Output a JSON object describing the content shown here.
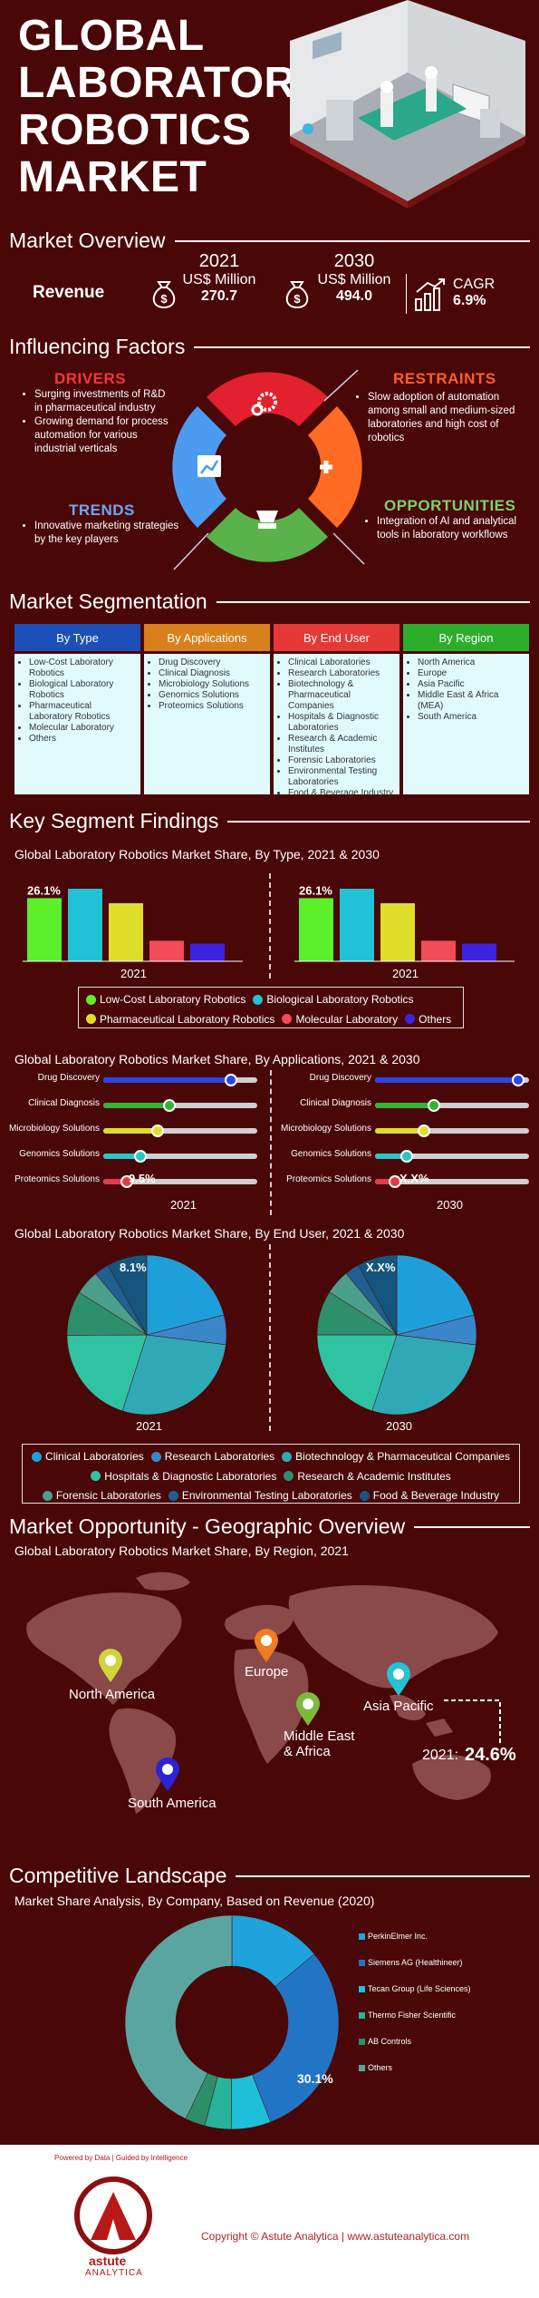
{
  "hero": {
    "line1": "GLOBAL",
    "line2": "LABORATORY",
    "line3": "ROBOTICS",
    "line4": "MARKET"
  },
  "overview": {
    "heading": "Market Overview",
    "revenue_label": "Revenue",
    "y2021": "2021",
    "unit2021": "US$ Million",
    "val2021": "270.7",
    "y2030": "2030",
    "unit2030": "US$ Million",
    "val2030": "494.0",
    "cagr_label": "CAGR",
    "cagr_val": "6.9%"
  },
  "factors": {
    "heading": "Influencing Factors",
    "drivers": {
      "title": "DRIVERS",
      "items": [
        "Surging investments of R&D in pharmaceutical industry",
        "Growing demand for process automation for various industrial verticals"
      ]
    },
    "restraints": {
      "title": "RESTRAINTS",
      "items": [
        "Slow adoption of automation among small and medium-sized laboratories and high cost of robotics"
      ]
    },
    "trends": {
      "title": "TRENDS",
      "items": [
        "Innovative marketing strategies by the key players"
      ]
    },
    "opportunities": {
      "title": "OPPORTUNITIES",
      "items": [
        "Integration of AI and analytical tools in laboratory workflows"
      ]
    }
  },
  "segmentation": {
    "heading": "Market Segmentation",
    "columns": [
      {
        "title": "By Type",
        "color": "#1c4fb8",
        "items": [
          "Low-Cost Laboratory Robotics",
          "Biological Laboratory Robotics",
          "Pharmaceutical Laboratory Robotics",
          "Molecular Laboratory",
          "Others"
        ]
      },
      {
        "title": "By Applications",
        "color": "#d8801b",
        "items": [
          "Drug Discovery",
          "Clinical Diagnosis",
          "Microbiology Solutions",
          "Genomics Solutions",
          "Proteomics Solutions"
        ]
      },
      {
        "title": "By End User",
        "color": "#e53935",
        "items": [
          "Clinical Laboratories",
          "Research Laboratories",
          "Biotechnology & Pharmaceutical Companies",
          "Hospitals & Diagnostic Laboratories",
          "Research & Academic Institutes",
          "Forensic Laboratories",
          "Environmental Testing Laboratories",
          "Food & Beverage Industry"
        ]
      },
      {
        "title": "By Region",
        "color": "#2cae2c",
        "items": [
          "North America",
          "Europe",
          "Asia Pacific",
          "Middle East & Africa (MEA)",
          "South America"
        ]
      }
    ]
  },
  "findings": {
    "heading": "Key Segment Findings",
    "type_title": "Global Laboratory Robotics Market Share, By Type, 2021 & 2030",
    "type_left_label": "26.1%",
    "type_right_label": "26.1%",
    "type_left_year": "2021",
    "type_right_year": "2021",
    "apps_title": "Global Laboratory Robotics Market Share, By Applications, 2021 & 2030",
    "apps_left_label": "9.5%",
    "apps_right_label": "X.X%",
    "apps_left_year": "2021",
    "apps_right_year": "2030",
    "enduser_title": "Global Laboratory Robotics Market Share, By End User, 2021 & 2030",
    "enduser_left_label": "8.1%",
    "enduser_right_label": "X.X%",
    "enduser_left_year": "2021",
    "enduser_right_year": "2030"
  },
  "chart_data": [
    {
      "type": "bar",
      "categories": [
        "Low-Cost Laboratory Robotics",
        "Biological Laboratory Robotics",
        "Pharmaceutical Laboratory Robotics",
        "Molecular Laboratory",
        "Others"
      ],
      "colors": [
        "#5bf02a",
        "#22c2d6",
        "#dede2a",
        "#f24b5a",
        "#3b23e0"
      ],
      "series": [
        {
          "name": "2021",
          "values": [
            26.1,
            30.0,
            24.0,
            8.5,
            7.3
          ]
        },
        {
          "name": "2021",
          "values": [
            26.1,
            30.0,
            24.0,
            8.5,
            7.3
          ]
        }
      ],
      "title": "Global Laboratory Robotics Market Share, By Type, 2021 & 2030"
    },
    {
      "type": "bar",
      "categories": [
        "Drug Discovery",
        "Clinical Diagnosis",
        "Microbiology Solutions",
        "Genomics Solutions",
        "Proteomics Solutions"
      ],
      "colors": [
        "#2a46e6",
        "#33b233",
        "#e2dd2a",
        "#29c7c4",
        "#e53a45"
      ],
      "series": [
        {
          "name": "2021",
          "values": [
            52,
            27,
            22,
            15,
            9.5
          ]
        },
        {
          "name": "2030",
          "values": [
            58,
            24,
            20,
            13,
            8
          ]
        }
      ],
      "title": "Global Laboratory Robotics Market Share, By Applications, 2021 & 2030"
    },
    {
      "type": "pie",
      "categories": [
        "Clinical Laboratories",
        "Research Laboratories",
        "Biotechnology & Pharmaceutical Companies",
        "Hospitals & Diagnostic Laboratories",
        "Research & Academic Institutes",
        "Forensic Laboratories",
        "Environmental Testing Laboratories",
        "Food & Beverage Industry"
      ],
      "colors": [
        "#1e9fd9",
        "#3a86c8",
        "#2fa9b6",
        "#30c3a3",
        "#2e8f6c",
        "#4aa08a",
        "#1e6090",
        "#16557d"
      ],
      "series": [
        {
          "name": "2021",
          "values": [
            21,
            6,
            28,
            20,
            9,
            5,
            3,
            8.1
          ]
        },
        {
          "name": "2030",
          "values": [
            21,
            6,
            28,
            20,
            9,
            5,
            3,
            8
          ]
        }
      ],
      "title": "Global Laboratory Robotics Market Share, By End User, 2021 & 2030"
    },
    {
      "type": "pie",
      "categories": [
        "PerkinElmer Inc.",
        "Siemens AG (Healthineer)",
        "Tecan Group (Life Sciences)",
        "Thermo Fisher Scientific",
        "AB Controls",
        "Others"
      ],
      "colors": [
        "#1ea3dc",
        "#2275c4",
        "#1dc0d8",
        "#27b39b",
        "#2d8f6a",
        "#5aa5a0"
      ],
      "values": [
        14,
        30.1,
        6,
        4,
        3,
        42.9
      ],
      "title": "Market Share Analysis, By Company, Based on Revenue (2020)"
    }
  ],
  "legends": {
    "type": [
      {
        "label": "Low-Cost Laboratory Robotics",
        "color": "#5bf02a"
      },
      {
        "label": "Biological Laboratory Robotics",
        "color": "#22c2d6"
      },
      {
        "label": "Pharmaceutical Laboratory Robotics",
        "color": "#dede2a"
      },
      {
        "label": "Molecular Laboratory",
        "color": "#f24b5a"
      },
      {
        "label": "Others",
        "color": "#3b23e0"
      }
    ],
    "enduser": [
      {
        "label": "Clinical Laboratories",
        "color": "#1e9fd9"
      },
      {
        "label": "Research Laboratories",
        "color": "#3a86c8"
      },
      {
        "label": "Biotechnology & Pharmaceutical Companies",
        "color": "#2fa9b6"
      },
      {
        "label": "Hospitals & Diagnostic Laboratories",
        "color": "#30c3a3"
      },
      {
        "label": "Research & Academic Institutes",
        "color": "#2e8f6c"
      },
      {
        "label": "Forensic Laboratories",
        "color": "#4aa08a"
      },
      {
        "label": "Environmental Testing Laboratories",
        "color": "#1e6090"
      },
      {
        "label": "Food & Beverage Industry",
        "color": "#16557d"
      }
    ]
  },
  "geo": {
    "heading": "Market Opportunity - Geographic Overview",
    "title": "Global Laboratory Robotics Market Share, By Region, 2021",
    "regions": [
      "North America",
      "Europe",
      "Asia Pacific",
      "Middle East & Africa",
      "South America"
    ],
    "callout_year": "2021:",
    "callout_val": "24.6%"
  },
  "competitive": {
    "heading": "Competitive Landscape",
    "title": "Market Share Analysis, By Company, Based on Revenue (2020)",
    "center_label": "30.1%"
  },
  "footer": {
    "copyright": "Copyright © Astute Analytica  |  www.astuteanalytica.com",
    "brand": "astute",
    "brand2": "ANALYTICA",
    "tagline": "Powered by Data | Guided by Intelligence"
  }
}
